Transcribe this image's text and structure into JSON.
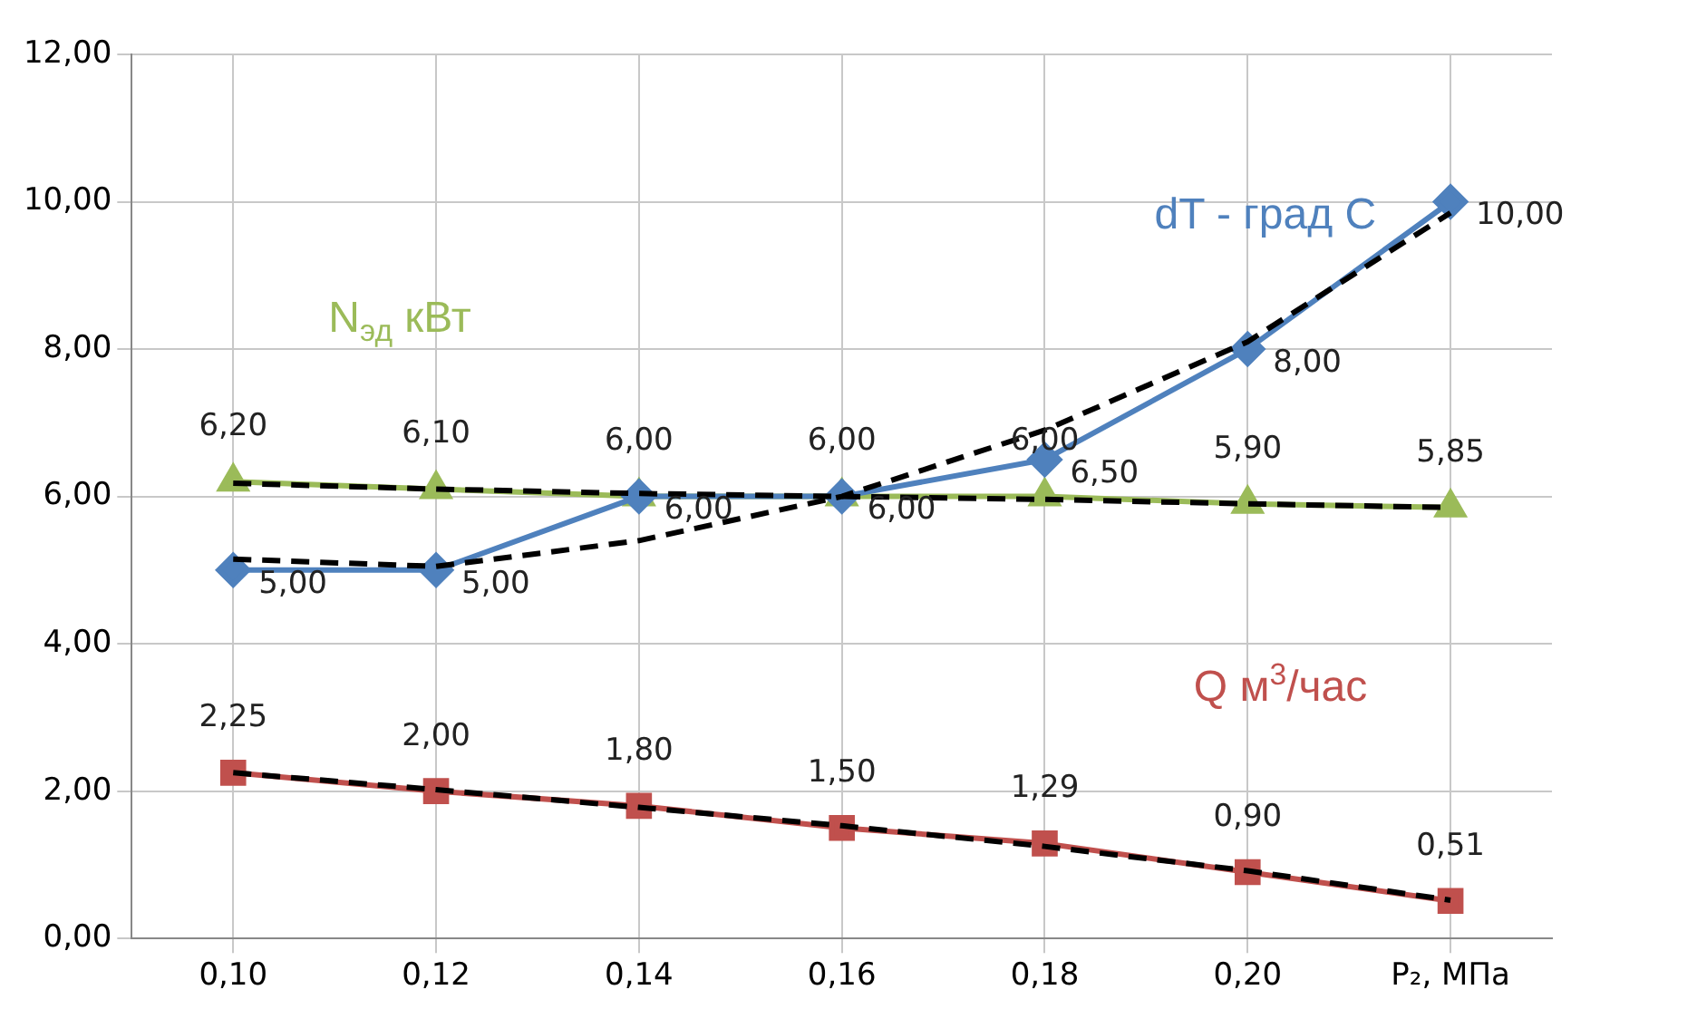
{
  "chart_data": {
    "type": "line",
    "categories": [
      "0,10",
      "0,12",
      "0,14",
      "0,16",
      "0,18",
      "0,20",
      "P₂, МПа"
    ],
    "ylim": [
      0,
      12
    ],
    "yticks": [
      {
        "value": 0,
        "label": "0,00"
      },
      {
        "value": 2,
        "label": "2,00"
      },
      {
        "value": 4,
        "label": "4,00"
      },
      {
        "value": 6,
        "label": "6,00"
      },
      {
        "value": 8,
        "label": "8,00"
      },
      {
        "value": 10,
        "label": "10,00"
      },
      {
        "value": 12,
        "label": "12,00"
      }
    ],
    "grid": true,
    "legend": false,
    "line_style": "solid",
    "series": [
      {
        "name": "dT - град С",
        "color": "#4f81bd",
        "marker": "diamond",
        "values": [
          5,
          5,
          6,
          6,
          6.5,
          8,
          10
        ],
        "value_labels": [
          "5,00",
          "5,00",
          "6,00",
          "6,00",
          "6,50",
          "8,00",
          "10,00"
        ]
      },
      {
        "name": "N$_{эд}$ кВт",
        "color": "#9bbb59",
        "marker": "triangle",
        "values": [
          6.2,
          6.1,
          6,
          6,
          6,
          5.9,
          5.85
        ],
        "value_labels": [
          "6,20",
          "6,10",
          "6,00",
          "6,00",
          "6,00",
          "5,90",
          "5,85"
        ]
      },
      {
        "name": "Q м$^{3}$/час",
        "color": "#c0504d",
        "marker": "square",
        "values": [
          2.25,
          2,
          1.8,
          1.5,
          1.29,
          0.9,
          0.51
        ],
        "value_labels": [
          "2,25",
          "2,00",
          "1,80",
          "1,50",
          "1,29",
          "0,90",
          "0,51"
        ]
      },
      {
        "color": "#000000",
        "marker": "none",
        "line_style": "dashed",
        "values": [
          5.15,
          5.05,
          5.4,
          6,
          6.9,
          8.1,
          9.85
        ]
      },
      {
        "color": "#000000",
        "marker": "none",
        "line_style": "dashed",
        "values": [
          6.18,
          6.1,
          6.04,
          6,
          5.96,
          5.9,
          5.85
        ]
      },
      {
        "color": "#000000",
        "marker": "none",
        "line_style": "dashed",
        "values": [
          2.25,
          2.02,
          1.78,
          1.53,
          1.25,
          0.92,
          0.52
        ]
      }
    ]
  }
}
